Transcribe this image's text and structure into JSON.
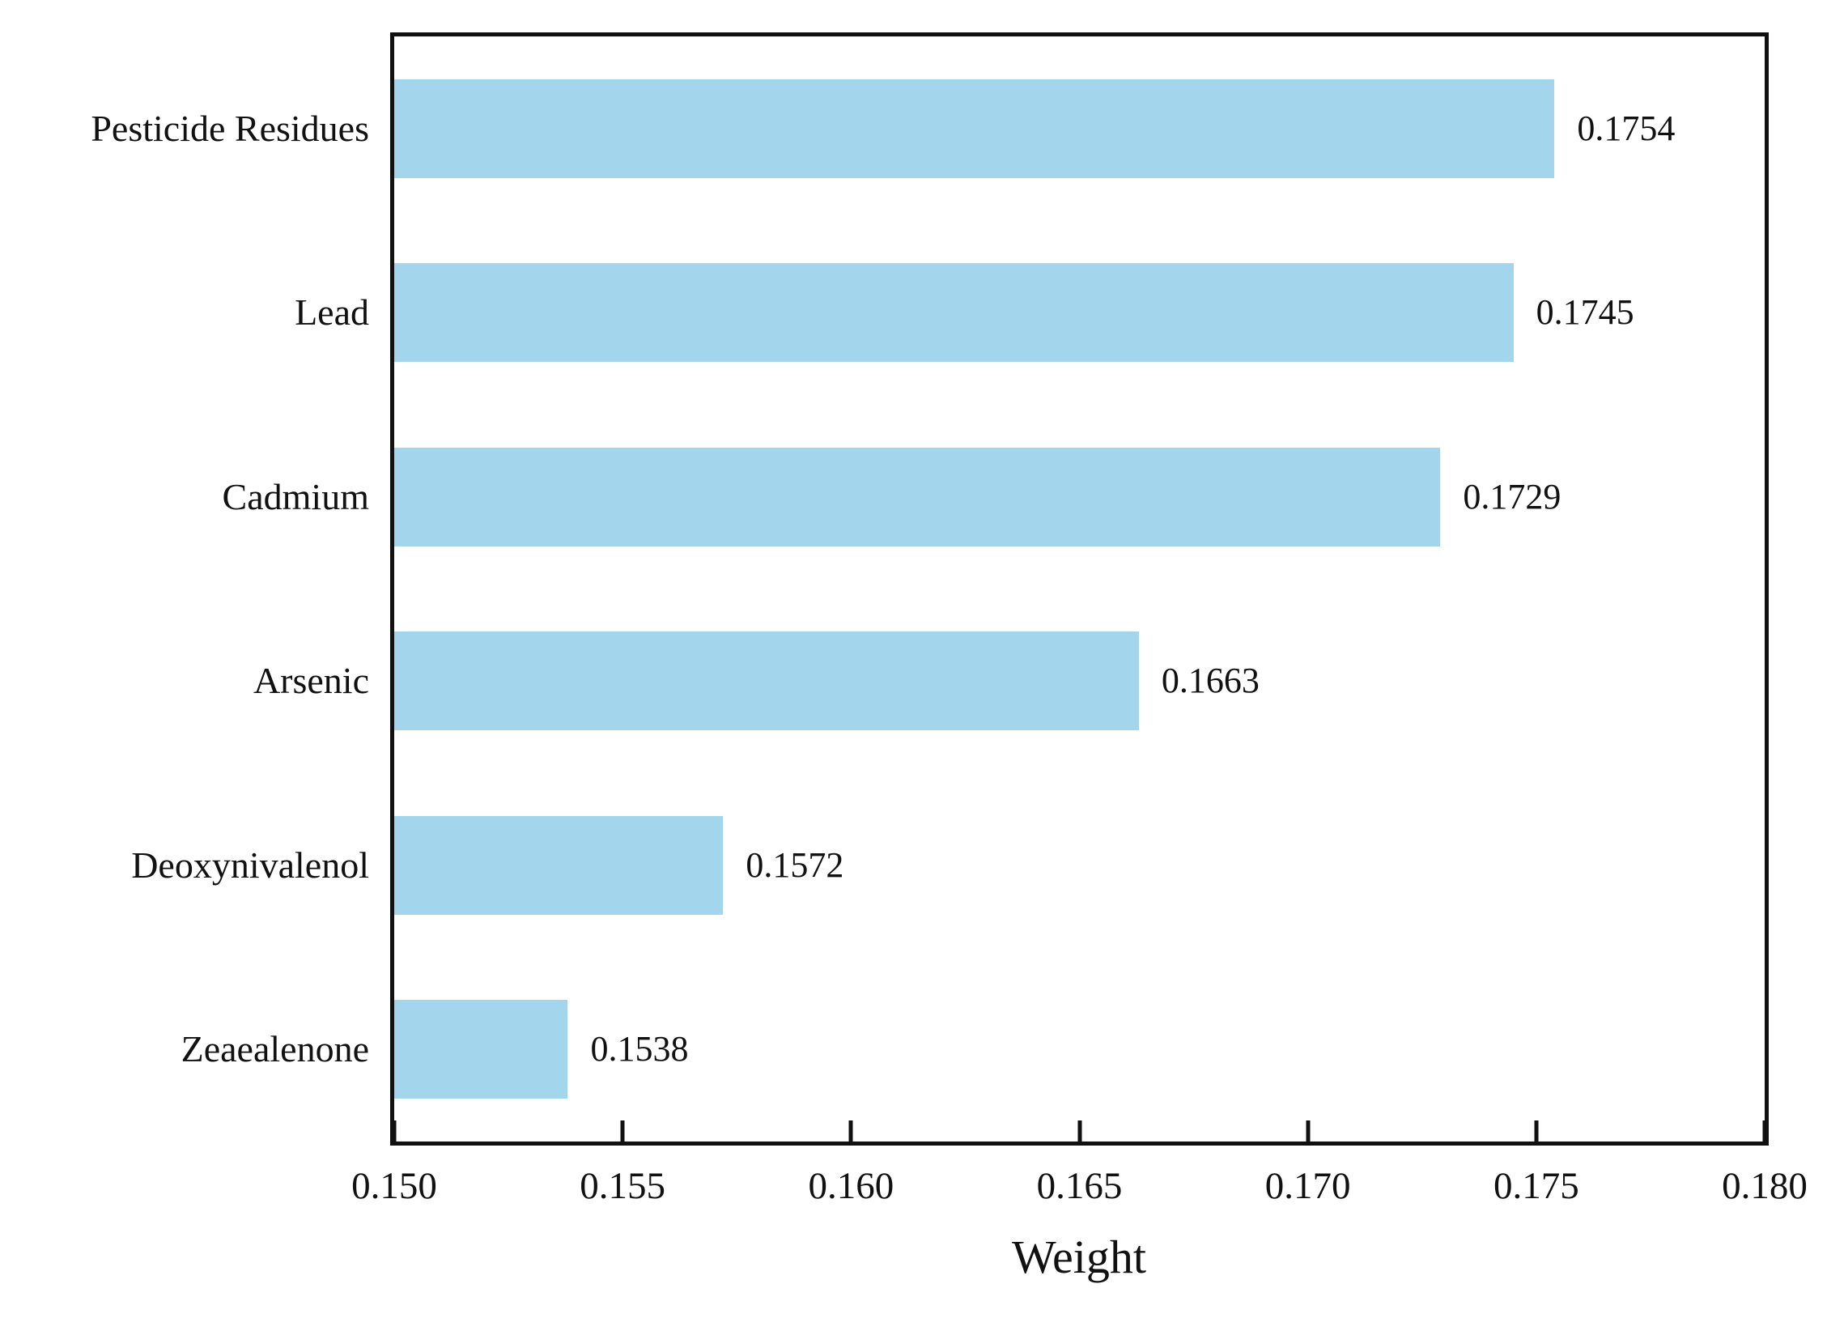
{
  "chart_data": {
    "type": "bar",
    "orientation": "horizontal",
    "title": "",
    "xlabel": "Weight",
    "ylabel": "",
    "categories": [
      "Pesticide Residues",
      "Lead",
      "Cadmium",
      "Arsenic",
      "Deoxynivalenol",
      "Zeaealenone"
    ],
    "values": [
      0.1754,
      0.1745,
      0.1729,
      0.1663,
      0.1572,
      0.1538
    ],
    "value_labels": [
      "0.1754",
      "0.1745",
      "0.1729",
      "0.1663",
      "0.1572",
      "0.1538"
    ],
    "xlim": [
      0.15,
      0.18
    ],
    "x_tick_values": [
      0.15,
      0.155,
      0.16,
      0.165,
      0.17,
      0.175,
      0.18
    ],
    "x_tick_labels": [
      "0.150",
      "0.155",
      "0.160",
      "0.165",
      "0.170",
      "0.175",
      "0.180"
    ],
    "grid": false,
    "legend_position": "none",
    "bar_color": "#A3D5EC",
    "frame_color": "#111111",
    "text_color": "#111111"
  }
}
